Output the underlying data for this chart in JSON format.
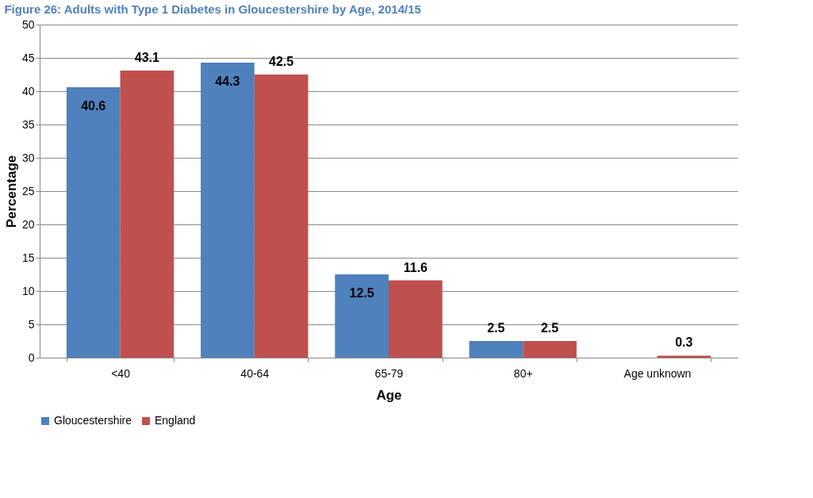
{
  "chart_data": {
    "type": "bar",
    "title": "Figure 26: Adults with Type 1 Diabetes in Gloucestershire by Age, 2014/15",
    "categories": [
      "<40",
      "40-64",
      "65-79",
      "80+",
      "Age unknown"
    ],
    "series": [
      {
        "name": "Gloucestershire",
        "color": "#4f81bd",
        "values": [
          40.6,
          44.3,
          12.5,
          2.5,
          null
        ]
      },
      {
        "name": "England",
        "color": "#c0504d",
        "values": [
          43.1,
          42.5,
          11.6,
          2.5,
          0.3
        ]
      }
    ],
    "xlabel": "Age",
    "ylabel": "Percentage",
    "ylim": [
      0,
      50
    ],
    "yticks": [
      0,
      5,
      10,
      15,
      20,
      25,
      30,
      35,
      40,
      45,
      50
    ],
    "grid": "y",
    "legend": "bottom",
    "data_labels": true
  }
}
